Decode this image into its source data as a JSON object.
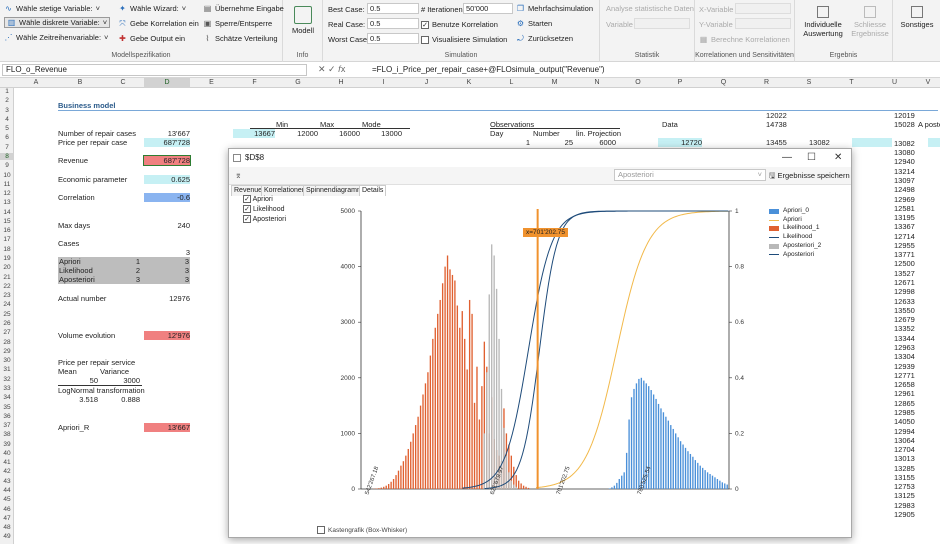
{
  "ribbon": {
    "model_spec": {
      "btn1": "Wähle stetige Variable:",
      "btn2": "Wähle diskrete Variable:",
      "btn3": "Wähle Zeitreihenvariable:",
      "btn4": "Wähle Wizard:",
      "btn5": "Gebe Korrelation ein",
      "btn6": "Gebe Output ein",
      "btn7": "Übernehme Eingabe",
      "btn8": "Sperre/Entsperre",
      "btn9": "Schätze Verteilung",
      "title": "Modellspezifikation"
    },
    "info": {
      "model_label": "Modell",
      "title": "Info"
    },
    "simulation": {
      "best_label": "Best Case:",
      "best_value": "0.5",
      "real_label": "Real Case:",
      "real_value": "0.5",
      "worst_label": "Worst Case:",
      "worst_value": "0.5",
      "iter_label": "# Iterationen:",
      "iter_value": "50'000",
      "use_corr": "Benutze Korrelation",
      "visualize": "Visualisiere Simulation",
      "multi": "Mehrfachsimulation",
      "start": "Starten",
      "reset": "Zurücksetzen",
      "title": "Simulation"
    },
    "statistik": {
      "analyse": "Analyse statistische Daten",
      "variable": "Variable",
      "title": "Statistik"
    },
    "korrelation": {
      "xvar": "X-Variable",
      "yvar": "Y-Variable",
      "compute": "Berechne Korrelationen",
      "title": "Korrelationen und Sensitivitäten"
    },
    "ergebnis": {
      "indiv": "Individuelle Auswertung",
      "close": "Schliesse Ergebnisse",
      "title": "Ergebnis"
    },
    "sonstiges": {
      "label": "Sonstiges"
    }
  },
  "formula_bar": {
    "name_box": "FLO_o_Revenue",
    "formula": "=FLO_i_Price_per_repair_case+@FLOsimula_output(\"Revenue\")"
  },
  "columns": [
    "A",
    "B",
    "C",
    "D",
    "E",
    "F",
    "G",
    "H",
    "I",
    "J",
    "K",
    "L",
    "M",
    "N",
    "O",
    "P",
    "Q",
    "R",
    "S",
    "T",
    "U",
    "V"
  ],
  "rows": [
    "1",
    "2",
    "3",
    "4",
    "5",
    "6",
    "7",
    "8",
    "9",
    "10",
    "11",
    "12",
    "13",
    "14",
    "15",
    "16",
    "17",
    "18",
    "19",
    "20",
    "21",
    "22",
    "23",
    "24",
    "25",
    "26",
    "27",
    "28",
    "29",
    "30",
    "31",
    "32",
    "33",
    "34",
    "35",
    "36",
    "37",
    "38",
    "39",
    "40",
    "41",
    "42",
    "43",
    "44",
    "45",
    "46",
    "47",
    "48",
    "49"
  ],
  "sheet": {
    "title": "Business model",
    "repair_cases_label": "Number of repair cases",
    "repair_cases_value": "13'667",
    "price_label": "Price per repair case",
    "price_value": "687'728",
    "revenue_label": "Revenue",
    "revenue_value": "687'728",
    "econ_label": "Economic parameter",
    "econ_value": "0.625",
    "corr_label": "Correlation",
    "corr_value": "-0.6",
    "maxdays_label": "Max days",
    "maxdays_value": "240",
    "cases_label": "Cases",
    "cases_count": "3",
    "case1": "Apriori",
    "case1_n": "1",
    "case1_v": "3",
    "case2": "Likelihood",
    "case2_n": "2",
    "case2_v": "3",
    "case3": "Aposteriori",
    "case3_n": "3",
    "case3_v": "3",
    "actual_label": "Actual number",
    "actual_value": "12976",
    "volume_label": "Volume evolution",
    "volume_value": "12'976",
    "price_service_label": "Price per repair service",
    "mean_label": "Mean",
    "variance_label": "Variance",
    "mean_value": "50",
    "variance_value": "3000",
    "lognormal_label": "LogNormal transformation",
    "ln1": "3.518",
    "ln2": "0.888",
    "apriori_r_label": "Apriori_R",
    "apriori_r_value": "13'667",
    "min_label": "Min",
    "max_label": "Max",
    "mode_label": "Mode",
    "f5": "13667",
    "g5": "12000",
    "h5": "16000",
    "i5": "13000",
    "obs_label": "Observations",
    "day_label": "Day",
    "number_label": "Number",
    "proj_label": "lin. Projection",
    "obs_day": "1",
    "obs_number": "25",
    "obs_proj": "6000",
    "data_label": "Data",
    "p6": "12720",
    "r_col": [
      "12022",
      "14738",
      "",
      "13455",
      "13082"
    ],
    "s_col": [
      "13082"
    ],
    "u_col": [
      "12019",
      "15028",
      "",
      "13082",
      "13080",
      "12940",
      "13214",
      "13097",
      "12498",
      "12969",
      "12581",
      "13195",
      "13367",
      "12714",
      "12955",
      "13771",
      "12500",
      "13527",
      "12671",
      "12998",
      "12633",
      "13550",
      "12679",
      "13352",
      "13344",
      "12963",
      "13304",
      "12939",
      "12771",
      "12658",
      "12961",
      "12865",
      "12985",
      "14050",
      "12994",
      "13064",
      "12704",
      "13013",
      "13285",
      "13155",
      "12753",
      "13125",
      "12983",
      "12905"
    ],
    "v4": "A posteri"
  },
  "dialog": {
    "title": "$D$8",
    "tabs": [
      "Revenue",
      "Korrelationen",
      "Spinnendiagramm",
      "Details"
    ],
    "active_tab": "Details",
    "select_value": "Aposteriori",
    "save_label": "Ergebnisse speichern",
    "checklist": [
      "Apriori",
      "Likelihood",
      "Aposteriori"
    ],
    "footer_checkbox": "Kastengrafik (Box-Whisker)",
    "legend": [
      "Apriori_0",
      "Apriori",
      "Likelihood_1",
      "Likelihood",
      "Aposteriori_2",
      "Aposteriori"
    ],
    "annotation": "x=701'202.75"
  },
  "chart_data": {
    "type": "bar",
    "y_left_ticks": [
      "0",
      "1000",
      "2000",
      "3000",
      "4000",
      "5000"
    ],
    "y_right_ticks": [
      "0",
      "0.2",
      "0.4",
      "0.6",
      "0.8",
      "1"
    ],
    "x_ticks": [
      "542'267.18",
      "621'679.97",
      "701'202.75",
      "780'525.54"
    ],
    "ylim": [
      0,
      5000
    ],
    "series": [
      {
        "name": "Apriori_0",
        "color": "#4a90d9",
        "start": 101,
        "values": [
          10,
          30,
          60,
          110,
          180,
          240,
          300,
          650,
          1250,
          1650,
          1800,
          1900,
          1980,
          2000,
          1950,
          1900,
          1850,
          1780,
          1700,
          1620,
          1530,
          1450,
          1380,
          1300,
          1230,
          1150,
          1080,
          1000,
          930,
          860,
          800,
          740,
          680,
          630,
          580,
          520,
          470,
          420,
          380,
          340,
          300,
          270,
          240,
          210,
          180,
          150,
          120,
          100,
          80
        ]
      },
      {
        "name": "Likelihood_1",
        "color": "#e06030",
        "start": 5,
        "values": [
          5,
          10,
          15,
          25,
          40,
          60,
          90,
          130,
          180,
          250,
          330,
          420,
          500,
          600,
          720,
          850,
          1000,
          1150,
          1300,
          1500,
          1700,
          1900,
          2100,
          2400,
          2700,
          2900,
          3150,
          3400,
          3700,
          4000,
          4200,
          3950,
          3850,
          3750,
          3300,
          2900,
          3200,
          2700,
          2150,
          3400,
          3150,
          1550,
          2200,
          1250,
          1850,
          2650,
          2200,
          1000,
          1650,
          900,
          700,
          600,
          500,
          1450,
          1000,
          800,
          600,
          400,
          250,
          150,
          100,
          60,
          40,
          20
        ]
      },
      {
        "name": "Aposteriori_2",
        "color": "#b8b8b8",
        "start": 50,
        "values": [
          1000,
          2100,
          3500,
          4400,
          4200,
          3600,
          2700,
          1800,
          1100,
          600,
          300,
          150,
          80,
          40
        ]
      }
    ],
    "cdf": [
      {
        "name": "Apriori",
        "color": "#f2b94a",
        "start": 0.53,
        "end": 0.86
      },
      {
        "name": "Likelihood",
        "color": "#1e4b7a",
        "start": 0.33,
        "end": 0.58
      },
      {
        "name": "Aposteriori",
        "color": "#1e4b7a",
        "start": 0.39,
        "end": 0.58
      }
    ]
  }
}
